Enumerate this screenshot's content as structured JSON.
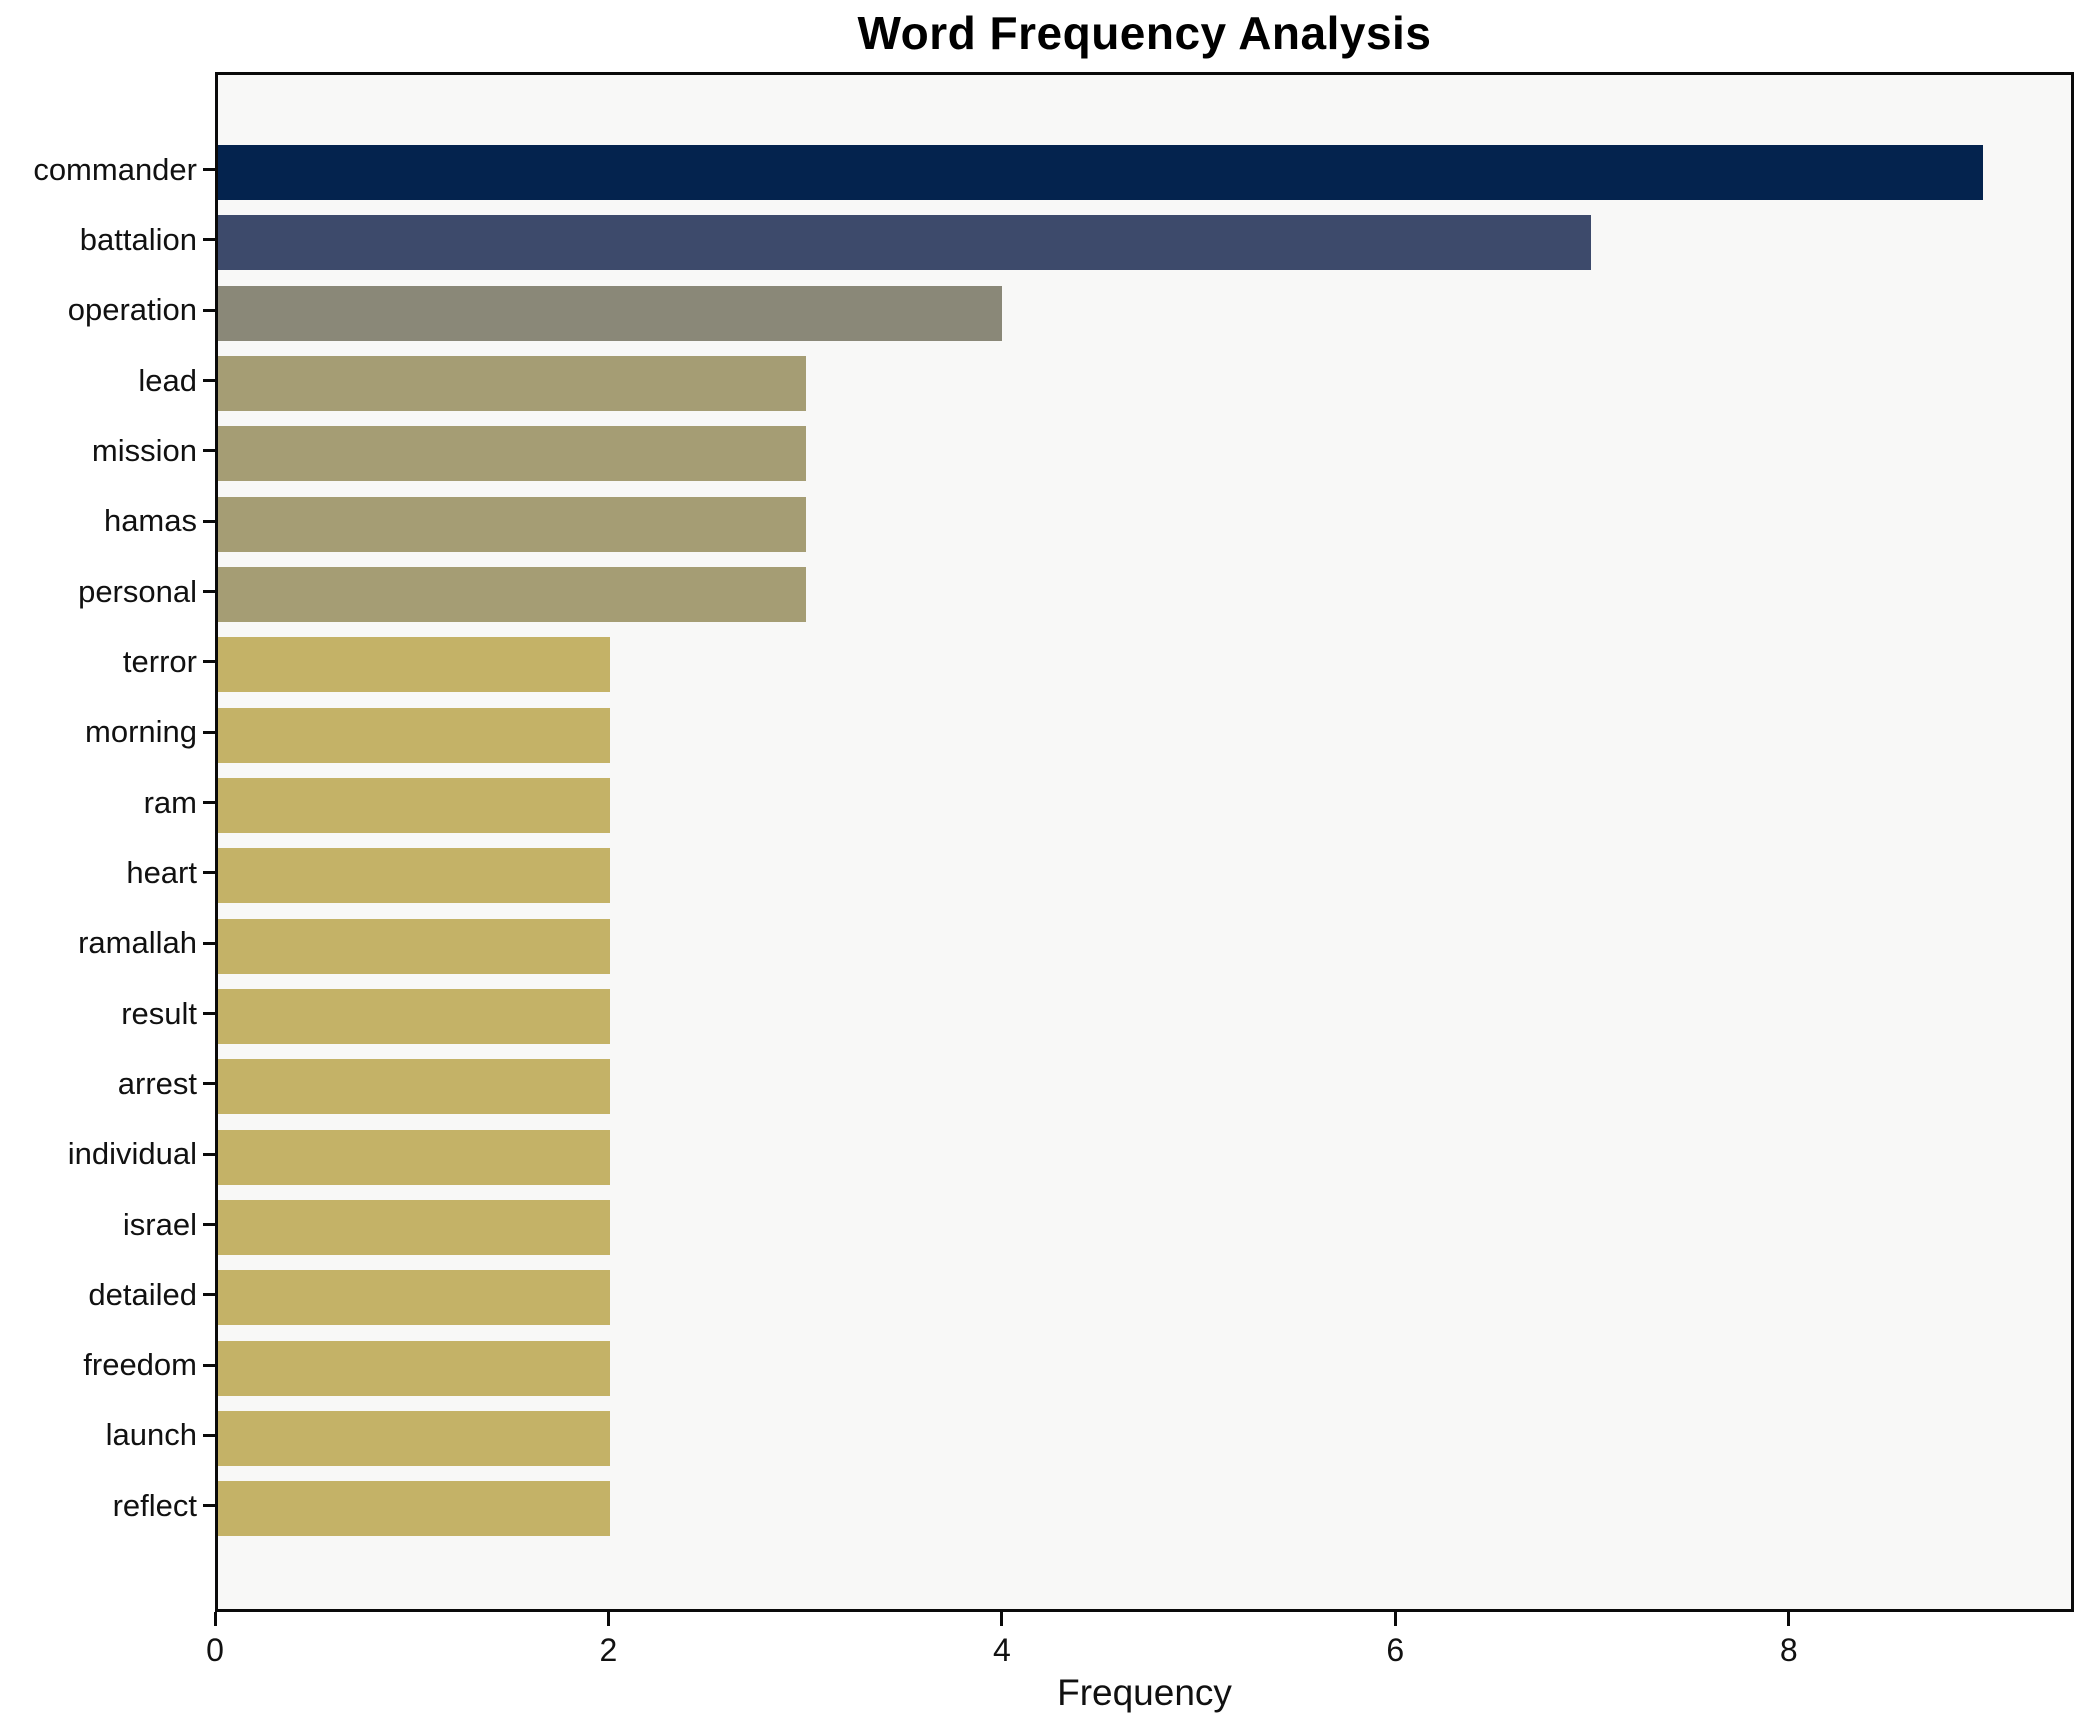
{
  "title": "Word Frequency Analysis",
  "chart_data": {
    "type": "bar",
    "orientation": "horizontal",
    "title": "Word Frequency Analysis",
    "xlabel": "Frequency",
    "ylabel": "",
    "categories": [
      "commander",
      "battalion",
      "operation",
      "lead",
      "mission",
      "hamas",
      "personal",
      "terror",
      "morning",
      "ram",
      "heart",
      "ramallah",
      "result",
      "arrest",
      "individual",
      "israel",
      "detailed",
      "freedom",
      "launch",
      "reflect"
    ],
    "values": [
      9,
      7,
      4,
      3,
      3,
      3,
      3,
      2,
      2,
      2,
      2,
      2,
      2,
      2,
      2,
      2,
      2,
      2,
      2,
      2
    ],
    "bar_colors": [
      "#04234e",
      "#3d4a6b",
      "#8a8878",
      "#a59d74",
      "#a59d74",
      "#a59d74",
      "#a59d74",
      "#c4b267",
      "#c4b267",
      "#c4b267",
      "#c4b267",
      "#c4b267",
      "#c4b267",
      "#c4b267",
      "#c4b267",
      "#c4b267",
      "#c4b267",
      "#c4b267",
      "#c4b267",
      "#c4b267"
    ],
    "xticks": [
      0,
      2,
      4,
      6,
      8
    ],
    "xlim": [
      0,
      9.45
    ],
    "grid": false,
    "legend": null,
    "plot_background": "#f8f8f7",
    "page_background": "#ffffff",
    "axis_color": "#0a0a0a",
    "text_color": "#111111"
  }
}
